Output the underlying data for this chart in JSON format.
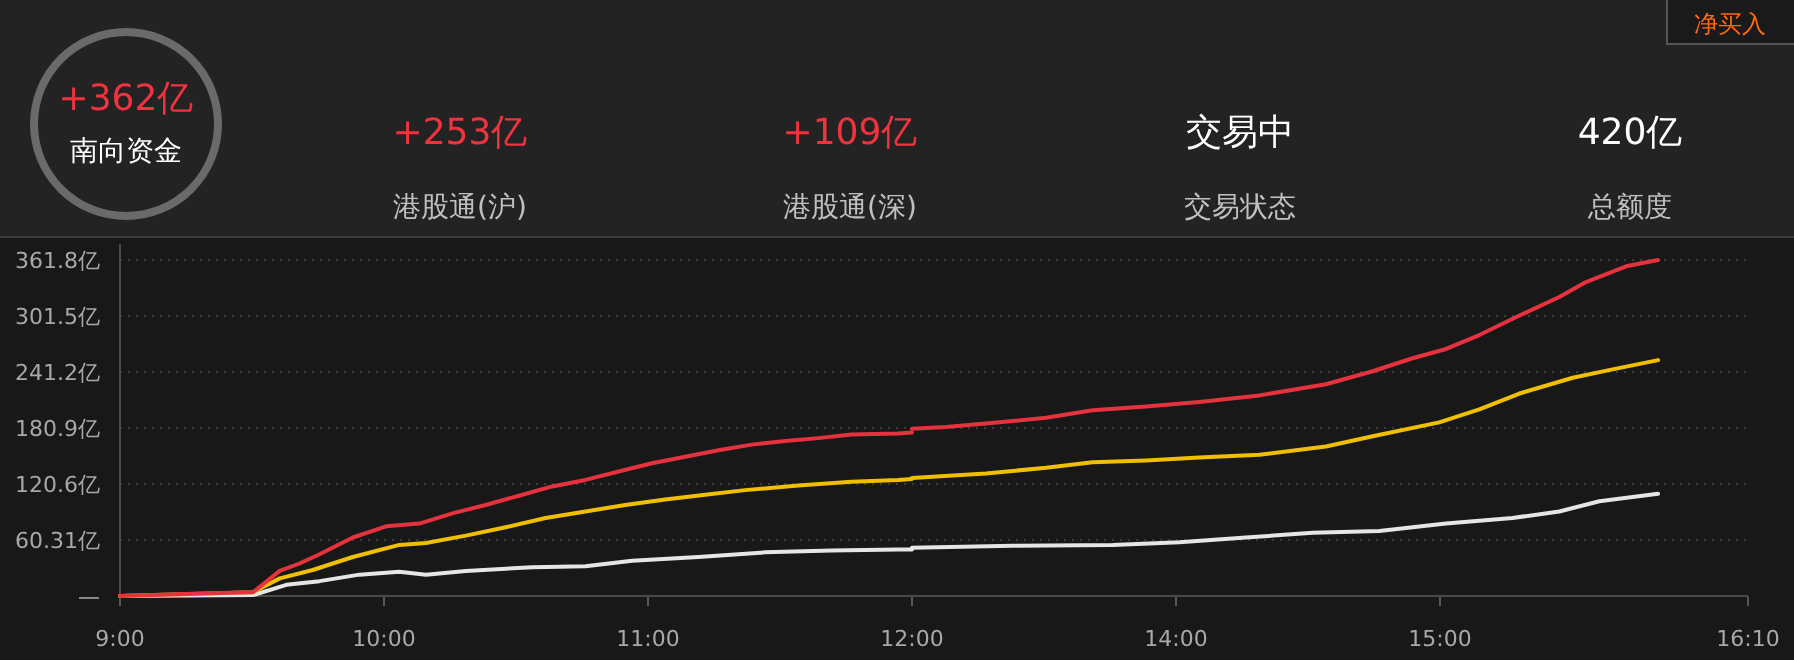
{
  "chart_data": [
    {
      "type": "other",
      "annotations": [
        "+362亿",
        "南向资金",
        "+253亿",
        "港股通(沪)",
        "+109亿",
        "港股通(深)",
        "交易中",
        "交易状态",
        "420亿",
        "总额度",
        "净买入"
      ]
    },
    {
      "type": "line",
      "xlim": [
        9,
        12
      ],
      "xticks": [
        {
          "value": 9,
          "label": "9:00"
        },
        {
          "value": 10,
          "label": "10:00"
        },
        {
          "value": 11,
          "label": "11:00"
        },
        {
          "value": 12,
          "label": "12:00"
        }
      ],
      "ylim": [
        0,
        361.8
      ],
      "yticks": [
        {
          "value": 0,
          "label": "—"
        },
        {
          "value": 60.31,
          "label": "60.31亿"
        },
        {
          "value": 120.6,
          "label": "120.6亿"
        },
        {
          "value": 180.9,
          "label": "180.9亿"
        },
        {
          "value": 241.2,
          "label": "241.2亿"
        },
        {
          "value": 301.5,
          "label": "301.5亿"
        },
        {
          "value": 361.8,
          "label": "361.8亿"
        }
      ],
      "grid": "y",
      "series": [
        {
          "color": "#e5323e",
          "x": [
            9,
            9.34,
            9.504,
            9.605,
            9.68,
            9.756,
            9.882,
            10.008,
            10.134,
            10.259,
            10.385,
            10.511,
            10.637,
            10.763,
            10.889,
            11.015,
            11.141,
            11.267,
            11.393,
            11.519,
            11.645,
            11.771,
            11.947,
            12.0
          ],
          "values": [
            0,
            3,
            4,
            27,
            35,
            45,
            63,
            75,
            78,
            89,
            98,
            108,
            118,
            125,
            134,
            143,
            150,
            157,
            163,
            167,
            170,
            174,
            175,
            176
          ]
        },
        {
          "color": "#f0c000",
          "x": [
            9,
            9.504,
            9.605,
            9.73,
            9.882,
            10.058,
            10.159,
            10.31,
            10.461,
            10.612,
            10.763,
            10.914,
            11.065,
            11.217,
            11.368,
            11.569,
            11.771,
            11.947,
            12.0
          ],
          "values": [
            0,
            4,
            19,
            28,
            42,
            55,
            57,
            65,
            74,
            84,
            91,
            98,
            104,
            109,
            114,
            119,
            123,
            125,
            126
          ]
        },
        {
          "color": "#e6e6e6",
          "x": [
            9,
            9.504,
            9.63,
            9.756,
            9.907,
            10.058,
            10.159,
            10.31,
            10.562,
            10.763,
            10.94,
            11.191,
            11.443,
            11.695,
            11.947,
            12.0
          ],
          "values": [
            0,
            1,
            12,
            16,
            23,
            26,
            23,
            27,
            31,
            32,
            38,
            42,
            47,
            49,
            50,
            50
          ]
        }
      ]
    },
    {
      "type": "line",
      "xlim": [
        13,
        16.1667
      ],
      "xticks": [
        {
          "value": 14,
          "label": "14:00"
        },
        {
          "value": 15,
          "label": "15:00"
        },
        {
          "value": 16.1667,
          "label": "16:10"
        }
      ],
      "ylim": [
        0,
        361.8
      ],
      "yticks": [
        0,
        60.31,
        120.6,
        180.9,
        241.2,
        301.5,
        361.8
      ],
      "tick_labels": "x",
      "grid": "y",
      "series": [
        {
          "color": "#e5323e",
          "x": [
            13.0,
            13.129,
            13.331,
            13.508,
            13.684,
            13.886,
            14.088,
            14.316,
            14.568,
            14.745,
            14.896,
            15.023,
            15.149,
            15.301,
            15.452,
            15.553,
            15.705,
            15.826
          ],
          "values": [
            180,
            182,
            187,
            192,
            200,
            204,
            209,
            216,
            228,
            242,
            256,
            266,
            281,
            302,
            322,
            338,
            355,
            361.8
          ]
        },
        {
          "color": "#f0c000",
          "x": [
            13.0,
            13.28,
            13.508,
            13.684,
            13.886,
            14.088,
            14.316,
            14.568,
            14.745,
            14.997,
            15.149,
            15.301,
            15.503,
            15.654,
            15.826
          ],
          "values": [
            127,
            132,
            138,
            144,
            146,
            149,
            152,
            161,
            172,
            187,
            201,
            218,
            235,
            244,
            254
          ]
        },
        {
          "color": "#e6e6e6",
          "x": [
            13.0,
            13.381,
            13.76,
            14.013,
            14.265,
            14.518,
            14.77,
            15.023,
            15.275,
            15.452,
            15.604,
            15.826
          ],
          "values": [
            52,
            54,
            55,
            58,
            63,
            68,
            70,
            78,
            84,
            91,
            102,
            110
          ]
        }
      ]
    }
  ]
}
